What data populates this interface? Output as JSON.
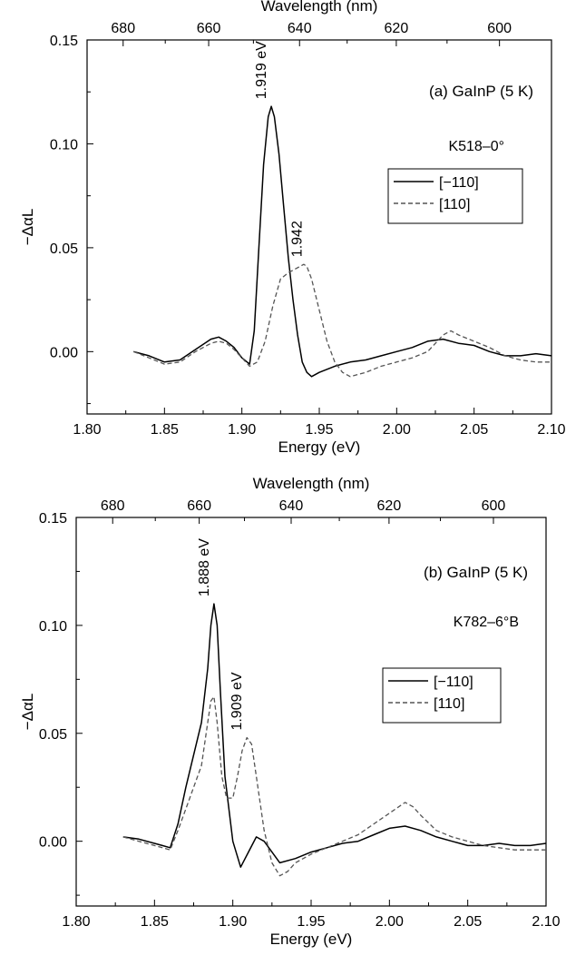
{
  "charts": [
    {
      "panel_title": "(a) GaInP (5 K)",
      "sample": "K518–0°",
      "annotations": [
        {
          "text": "1.919 eV",
          "x": 1.919,
          "y": 0.118
        },
        {
          "text": "1.942",
          "x": 1.942,
          "y": 0.042
        }
      ]
    },
    {
      "panel_title": "(b) GaInP (5 K)",
      "sample": "K782–6°B",
      "annotations": [
        {
          "text": "1.888 eV",
          "x": 1.888,
          "y": 0.11
        },
        {
          "text": "1.909 eV",
          "x": 1.909,
          "y": 0.048
        }
      ]
    }
  ],
  "chart_data": [
    {
      "type": "line",
      "title": "(a) GaInP (5 K)",
      "xlabel": "Energy (eV)",
      "ylabel": "−ΔαL",
      "x2label": "Wavelength (nm)",
      "xlim": [
        1.8,
        2.1
      ],
      "ylim": [
        -0.03,
        0.15
      ],
      "xticks": [
        "1.80",
        "1.85",
        "1.90",
        "1.95",
        "2.00",
        "2.05",
        "2.10"
      ],
      "yticks": [
        "0.00",
        "0.05",
        "0.10",
        "0.15"
      ],
      "x2ticks": [
        "680",
        "660",
        "640",
        "620",
        "600"
      ],
      "legend": {
        "position": "right",
        "entries": [
          "[−110]",
          "[110]"
        ]
      },
      "series": [
        {
          "name": "[−110]",
          "style": "solid",
          "x": [
            1.83,
            1.84,
            1.85,
            1.86,
            1.87,
            1.88,
            1.885,
            1.89,
            1.895,
            1.9,
            1.905,
            1.908,
            1.911,
            1.914,
            1.917,
            1.919,
            1.921,
            1.924,
            1.927,
            1.93,
            1.933,
            1.936,
            1.939,
            1.942,
            1.945,
            1.95,
            1.96,
            1.97,
            1.98,
            1.99,
            2.0,
            2.01,
            2.02,
            2.03,
            2.04,
            2.05,
            2.06,
            2.07,
            2.08,
            2.09,
            2.1
          ],
          "y": [
            0.0,
            -0.002,
            -0.005,
            -0.004,
            0.001,
            0.006,
            0.007,
            0.005,
            0.002,
            -0.003,
            -0.006,
            0.01,
            0.05,
            0.09,
            0.113,
            0.118,
            0.113,
            0.095,
            0.07,
            0.045,
            0.025,
            0.008,
            -0.005,
            -0.01,
            -0.012,
            -0.01,
            -0.007,
            -0.005,
            -0.004,
            -0.002,
            0.0,
            0.002,
            0.005,
            0.006,
            0.004,
            0.003,
            0.0,
            -0.002,
            -0.002,
            -0.001,
            -0.002
          ]
        },
        {
          "name": "[110]",
          "style": "dashed",
          "x": [
            1.83,
            1.84,
            1.85,
            1.86,
            1.87,
            1.88,
            1.885,
            1.89,
            1.895,
            1.9,
            1.905,
            1.91,
            1.915,
            1.92,
            1.925,
            1.93,
            1.935,
            1.94,
            1.942,
            1.945,
            1.95,
            1.955,
            1.96,
            1.965,
            1.97,
            1.98,
            1.99,
            2.0,
            2.01,
            2.02,
            2.03,
            2.035,
            2.04,
            2.05,
            2.06,
            2.07,
            2.08,
            2.09,
            2.1
          ],
          "y": [
            0.0,
            -0.003,
            -0.006,
            -0.005,
            0.0,
            0.004,
            0.005,
            0.004,
            0.001,
            -0.003,
            -0.007,
            -0.005,
            0.005,
            0.022,
            0.035,
            0.038,
            0.04,
            0.042,
            0.041,
            0.035,
            0.02,
            0.005,
            -0.005,
            -0.01,
            -0.012,
            -0.01,
            -0.007,
            -0.005,
            -0.003,
            0.0,
            0.008,
            0.01,
            0.008,
            0.005,
            0.002,
            -0.002,
            -0.004,
            -0.005,
            -0.005
          ]
        }
      ]
    },
    {
      "type": "line",
      "title": "(b) GaInP (5 K)",
      "xlabel": "Energy (eV)",
      "ylabel": "−ΔαL",
      "x2label": "Wavelength (nm)",
      "xlim": [
        1.8,
        2.1
      ],
      "ylim": [
        -0.03,
        0.15
      ],
      "xticks": [
        "1.80",
        "1.85",
        "1.90",
        "1.95",
        "2.00",
        "2.05",
        "2.10"
      ],
      "yticks": [
        "0.00",
        "0.05",
        "0.10",
        "0.15"
      ],
      "x2ticks": [
        "680",
        "660",
        "640",
        "620",
        "600"
      ],
      "legend": {
        "position": "right",
        "entries": [
          "[−110]",
          "[110]"
        ]
      },
      "series": [
        {
          "name": "[−110]",
          "style": "solid",
          "x": [
            1.83,
            1.84,
            1.85,
            1.855,
            1.86,
            1.865,
            1.87,
            1.875,
            1.88,
            1.884,
            1.886,
            1.888,
            1.89,
            1.892,
            1.895,
            1.9,
            1.905,
            1.91,
            1.915,
            1.92,
            1.93,
            1.94,
            1.95,
            1.96,
            1.97,
            1.98,
            1.99,
            2.0,
            2.01,
            2.02,
            2.03,
            2.04,
            2.05,
            2.06,
            2.07,
            2.08,
            2.09,
            2.1
          ],
          "y": [
            0.002,
            0.001,
            -0.001,
            -0.002,
            -0.003,
            0.008,
            0.025,
            0.04,
            0.055,
            0.08,
            0.1,
            0.11,
            0.1,
            0.07,
            0.03,
            0.0,
            -0.012,
            -0.005,
            0.002,
            0.0,
            -0.01,
            -0.008,
            -0.005,
            -0.003,
            -0.001,
            0.0,
            0.003,
            0.006,
            0.007,
            0.005,
            0.002,
            0.0,
            -0.002,
            -0.002,
            -0.001,
            -0.002,
            -0.002,
            -0.001
          ]
        },
        {
          "name": "[110]",
          "style": "dashed",
          "x": [
            1.83,
            1.84,
            1.85,
            1.855,
            1.86,
            1.865,
            1.87,
            1.875,
            1.88,
            1.884,
            1.886,
            1.888,
            1.89,
            1.893,
            1.896,
            1.9,
            1.903,
            1.906,
            1.909,
            1.912,
            1.915,
            1.92,
            1.925,
            1.93,
            1.935,
            1.94,
            1.95,
            1.96,
            1.97,
            1.98,
            1.99,
            2.0,
            2.01,
            2.015,
            2.02,
            2.03,
            2.04,
            2.05,
            2.06,
            2.07,
            2.08,
            2.09,
            2.1
          ],
          "y": [
            0.002,
            0.0,
            -0.002,
            -0.003,
            -0.004,
            0.005,
            0.015,
            0.025,
            0.035,
            0.055,
            0.065,
            0.067,
            0.055,
            0.03,
            0.02,
            0.02,
            0.03,
            0.042,
            0.048,
            0.045,
            0.03,
            0.005,
            -0.01,
            -0.016,
            -0.014,
            -0.01,
            -0.006,
            -0.003,
            0.0,
            0.003,
            0.008,
            0.013,
            0.018,
            0.016,
            0.012,
            0.005,
            0.002,
            0.0,
            -0.002,
            -0.003,
            -0.004,
            -0.004,
            -0.004
          ]
        }
      ]
    }
  ]
}
